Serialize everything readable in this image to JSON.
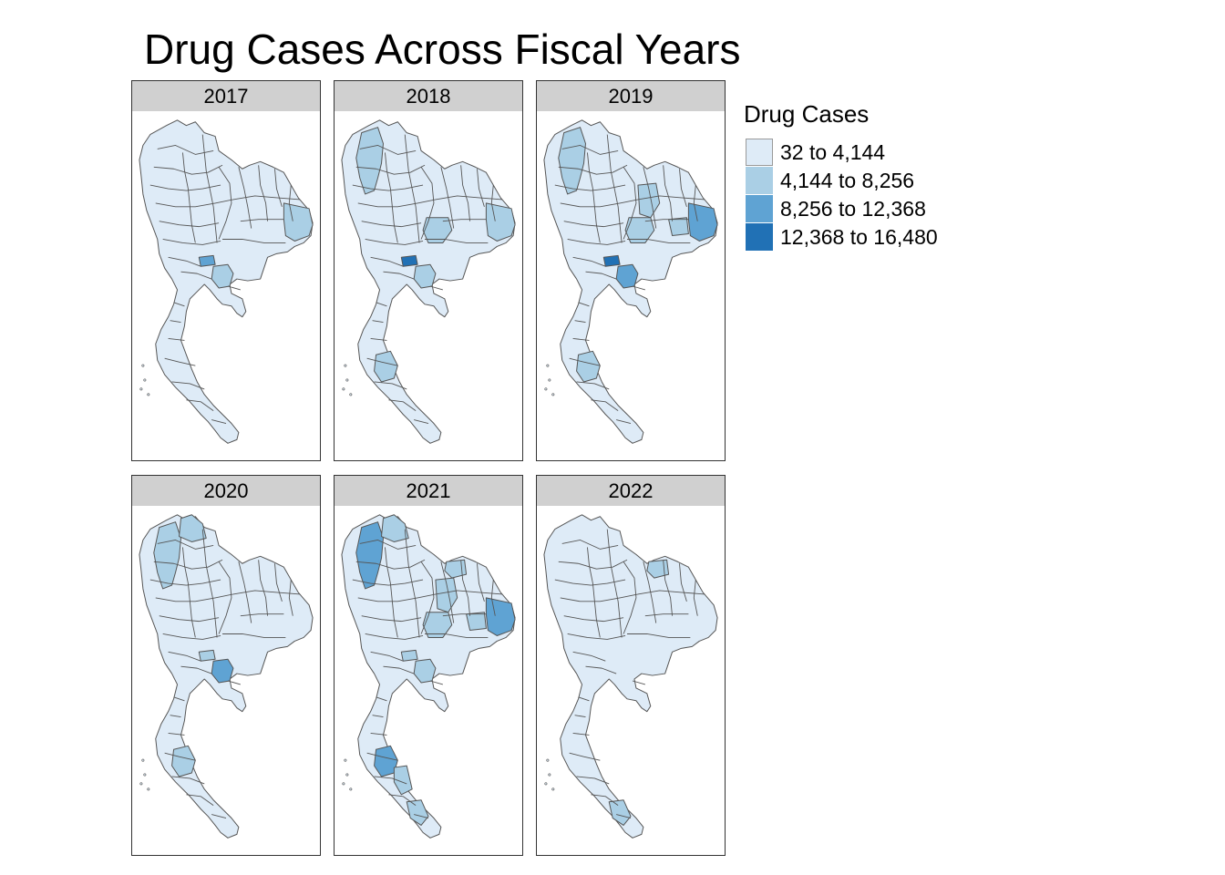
{
  "title": "Drug Cases Across Fiscal Years",
  "legend": {
    "title": "Drug Cases",
    "items": [
      {
        "label": "32 to 4,144",
        "color": "#deebf7"
      },
      {
        "label": "4,144 to 8,256",
        "color": "#aacfe5"
      },
      {
        "label": "8,256 to 12,368",
        "color": "#5fa3d3"
      },
      {
        "label": "12,368 to 16,480",
        "color": "#2171b5"
      }
    ]
  },
  "map_style": {
    "border_color": "#555555",
    "background": "#ffffff"
  },
  "panels": [
    {
      "year": "2017",
      "highlights": [
        {
          "region": "bangkok",
          "bin": 2
        },
        {
          "region": "chonburi",
          "bin": 1
        },
        {
          "region": "ubon",
          "bin": 1
        }
      ]
    },
    {
      "year": "2018",
      "highlights": [
        {
          "region": "bangkok",
          "bin": 3
        },
        {
          "region": "chonburi",
          "bin": 1
        },
        {
          "region": "chiangmai",
          "bin": 1
        },
        {
          "region": "korat",
          "bin": 1
        },
        {
          "region": "ubon",
          "bin": 1
        },
        {
          "region": "suratthani",
          "bin": 1
        }
      ]
    },
    {
      "year": "2019",
      "highlights": [
        {
          "region": "bangkok",
          "bin": 3
        },
        {
          "region": "chonburi",
          "bin": 2
        },
        {
          "region": "chiangmai",
          "bin": 1
        },
        {
          "region": "khonkaen",
          "bin": 1
        },
        {
          "region": "korat",
          "bin": 1
        },
        {
          "region": "sisaket",
          "bin": 1
        },
        {
          "region": "ubon",
          "bin": 2
        },
        {
          "region": "suratthani",
          "bin": 1
        }
      ]
    },
    {
      "year": "2020",
      "highlights": [
        {
          "region": "bangkok",
          "bin": 1
        },
        {
          "region": "chonburi",
          "bin": 2
        },
        {
          "region": "chiangmai",
          "bin": 1
        },
        {
          "region": "chiangrai",
          "bin": 1
        },
        {
          "region": "suratthani",
          "bin": 1
        }
      ]
    },
    {
      "year": "2021",
      "highlights": [
        {
          "region": "bangkok",
          "bin": 1
        },
        {
          "region": "chonburi",
          "bin": 1
        },
        {
          "region": "chiangmai",
          "bin": 2
        },
        {
          "region": "chiangrai",
          "bin": 1
        },
        {
          "region": "udon",
          "bin": 1
        },
        {
          "region": "khonkaen",
          "bin": 1
        },
        {
          "region": "korat",
          "bin": 1
        },
        {
          "region": "sisaket",
          "bin": 1
        },
        {
          "region": "ubon",
          "bin": 2
        },
        {
          "region": "suratthani",
          "bin": 2
        },
        {
          "region": "nakhonsi",
          "bin": 1
        },
        {
          "region": "songkhla",
          "bin": 1
        }
      ]
    },
    {
      "year": "2022",
      "highlights": [
        {
          "region": "udon",
          "bin": 1
        },
        {
          "region": "songkhla",
          "bin": 1
        }
      ]
    }
  ]
}
